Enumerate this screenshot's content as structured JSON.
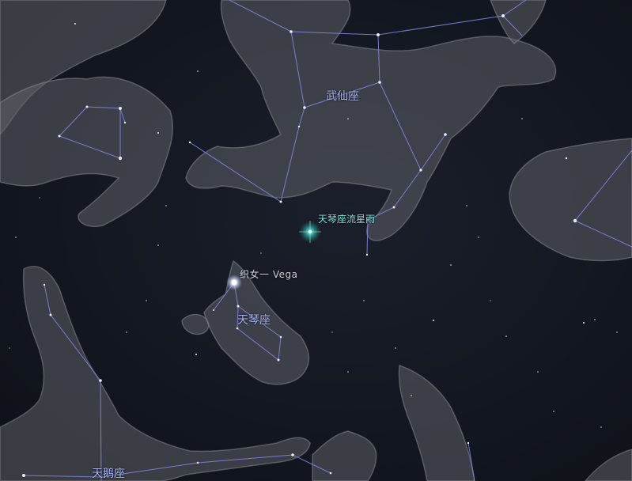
{
  "constellations": {
    "hercules": "武仙座",
    "lyra": "天琴座",
    "cygnus": "天鹅座"
  },
  "stars": {
    "vega": "织女一 Vega"
  },
  "meteor_showers": {
    "lyrids": "天琴座流星雨"
  },
  "colors": {
    "sky_background": "#121620",
    "constellation_line": "#7f86e0",
    "constellation_label": "#a9b5f2",
    "meteor_shower_label": "#7fe3dc",
    "star_label": "#d0d3da",
    "constellation_art": "#5e6168"
  }
}
